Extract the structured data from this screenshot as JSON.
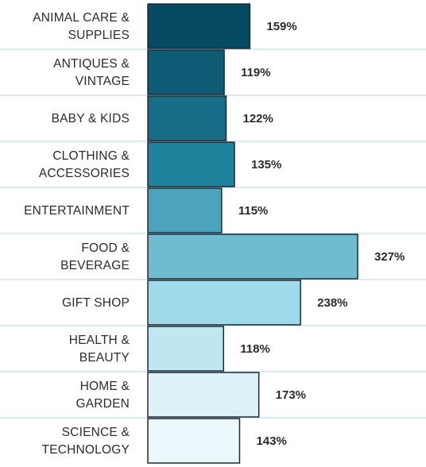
{
  "chart_data": {
    "type": "bar",
    "orientation": "horizontal",
    "title": "",
    "xlabel": "",
    "ylabel": "",
    "xlim": [
      0,
      327
    ],
    "grid": true,
    "categories": [
      [
        "ANIMAL CARE &",
        "SUPPLIES"
      ],
      [
        "ANTIQUES &",
        "VINTAGE"
      ],
      [
        "BABY & KIDS"
      ],
      [
        "CLOTHING &",
        "ACCESSORIES"
      ],
      [
        "ENTERTAINMENT"
      ],
      [
        "FOOD &",
        "BEVERAGE"
      ],
      [
        "GIFT SHOP"
      ],
      [
        "HEALTH &",
        "BEAUTY"
      ],
      [
        "HOME &",
        "GARDEN"
      ],
      [
        "SCIENCE &",
        "TECHNOLOGY"
      ]
    ],
    "values": [
      159,
      119,
      122,
      135,
      115,
      327,
      238,
      118,
      173,
      143
    ],
    "value_labels": [
      "159%",
      "119%",
      "122%",
      "135%",
      "115%",
      "327%",
      "238%",
      "118%",
      "173%",
      "143%"
    ],
    "colors": [
      "#054a60",
      "#0e5b75",
      "#176c88",
      "#1e829d",
      "#4ba3bd",
      "#6fbcd1",
      "#9fdaeb",
      "#bfe7f1",
      "#dcf1f8",
      "#ebf7fb"
    ]
  }
}
